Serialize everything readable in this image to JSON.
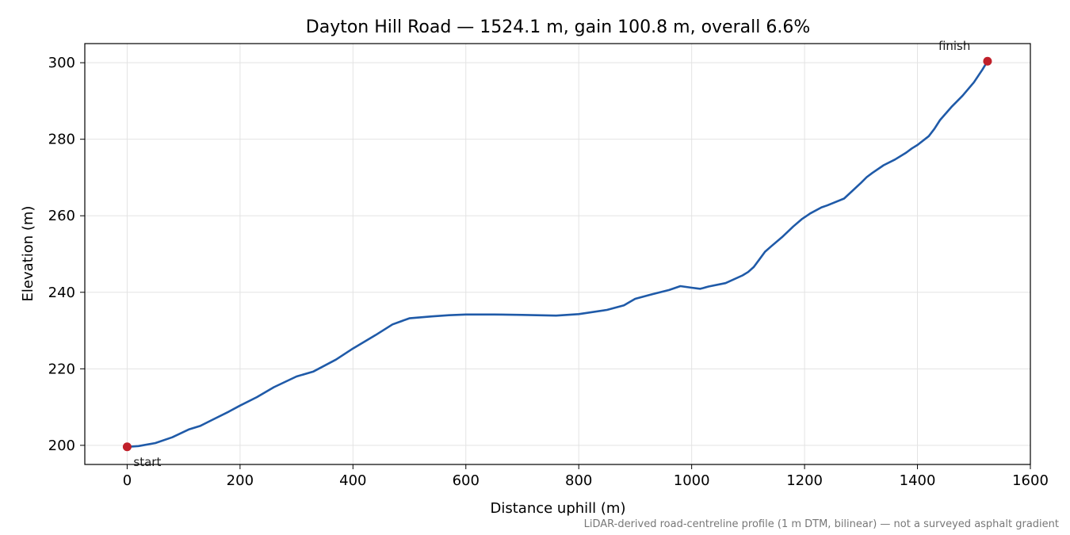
{
  "chart_data": {
    "type": "line",
    "title": "Dayton Hill Road — 1524.1 m, gain 100.8 m, overall 6.6%",
    "xlabel": "Distance uphill (m)",
    "ylabel": "Elevation (m)",
    "xlim": [
      -75,
      1600
    ],
    "ylim": [
      195,
      305
    ],
    "xticks": [
      0,
      200,
      400,
      600,
      800,
      1000,
      1200,
      1400,
      1600
    ],
    "yticks": [
      200,
      220,
      240,
      260,
      280,
      300
    ],
    "grid": true,
    "line_color": "#1f5aa8",
    "marker_color": "#c0202a",
    "series": [
      {
        "x": [
          0,
          20,
          50,
          80,
          110,
          130,
          150,
          180,
          200,
          230,
          260,
          300,
          330,
          370,
          400,
          440,
          470,
          500,
          540,
          570,
          600,
          650,
          700,
          760,
          800,
          850,
          880,
          900,
          930,
          960,
          980,
          1000,
          1010,
          1015,
          1020,
          1030,
          1060,
          1090,
          1100,
          1110,
          1120,
          1130,
          1140,
          1160,
          1180,
          1195,
          1210,
          1230,
          1240,
          1270,
          1300,
          1310,
          1320,
          1340,
          1360,
          1380,
          1390,
          1400,
          1420,
          1430,
          1440,
          1460,
          1480,
          1500,
          1515,
          1524.1
        ],
        "y": [
          199.6,
          199.8,
          200.6,
          202.1,
          204.2,
          205.1,
          206.6,
          208.8,
          210.4,
          212.6,
          215.2,
          218.0,
          219.3,
          222.4,
          225.3,
          228.8,
          231.6,
          233.2,
          233.7,
          234.0,
          234.2,
          234.2,
          234.1,
          233.9,
          234.3,
          235.4,
          236.6,
          238.3,
          239.5,
          240.6,
          241.6,
          241.2,
          241.0,
          240.9,
          241.1,
          241.5,
          242.4,
          244.4,
          245.3,
          246.6,
          248.6,
          250.6,
          251.9,
          254.4,
          257.2,
          259.1,
          260.6,
          262.2,
          262.7,
          264.5,
          268.6,
          270.1,
          271.2,
          273.2,
          274.7,
          276.5,
          277.6,
          278.5,
          280.8,
          282.7,
          285.0,
          288.4,
          291.4,
          294.9,
          298.2,
          300.4
        ]
      }
    ],
    "markers": [
      {
        "label": "start",
        "x": 0,
        "y": 199.6
      },
      {
        "label": "finish",
        "x": 1524.1,
        "y": 300.4
      }
    ],
    "footnote": "LiDAR-derived road-centreline profile (1 m DTM, bilinear) — not a surveyed asphalt gradient"
  }
}
